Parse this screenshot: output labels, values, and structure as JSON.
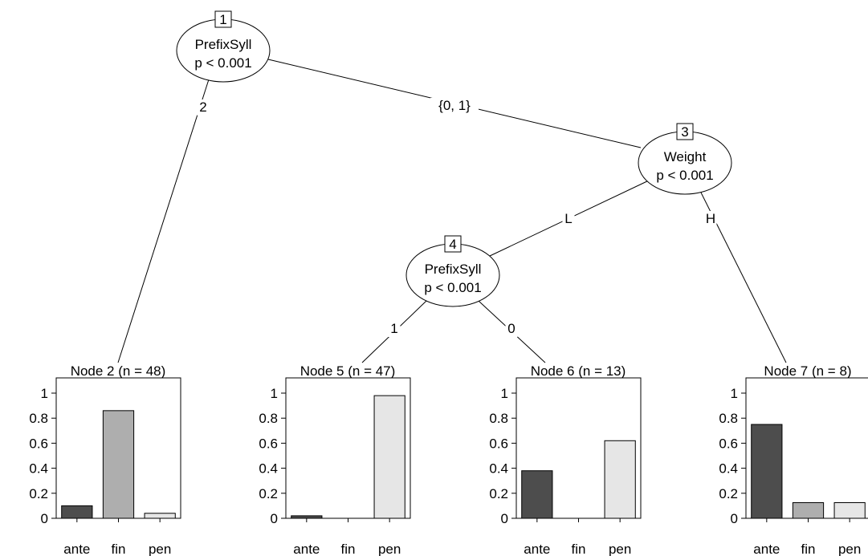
{
  "tree": {
    "inner_nodes": [
      {
        "id": "1",
        "variable": "PrefixSyll",
        "p": "p < 0.001"
      },
      {
        "id": "3",
        "variable": "Weight",
        "p": "p < 0.001"
      },
      {
        "id": "4",
        "variable": "PrefixSyll",
        "p": "p < 0.001"
      }
    ],
    "edges": [
      {
        "from": "1",
        "to": "2",
        "label": "2"
      },
      {
        "from": "1",
        "to": "3",
        "label": "{0, 1}"
      },
      {
        "from": "3",
        "to": "4",
        "label": "L"
      },
      {
        "from": "3",
        "to": "7",
        "label": "H"
      },
      {
        "from": "4",
        "to": "5",
        "label": "1"
      },
      {
        "from": "4",
        "to": "6",
        "label": "0"
      }
    ]
  },
  "y_ticks": [
    "0",
    "0.2",
    "0.4",
    "0.6",
    "0.8",
    "1"
  ],
  "chart_data": [
    {
      "type": "bar",
      "title": "Node 2 (n = 48)",
      "categories": [
        "ante",
        "fin",
        "pen"
      ],
      "values": [
        0.1,
        0.86,
        0.04
      ],
      "ylim": [
        0,
        1
      ]
    },
    {
      "type": "bar",
      "title": "Node 5 (n = 47)",
      "categories": [
        "ante",
        "fin",
        "pen"
      ],
      "values": [
        0.02,
        0.0,
        0.98
      ],
      "ylim": [
        0,
        1
      ]
    },
    {
      "type": "bar",
      "title": "Node 6 (n = 13)",
      "categories": [
        "ante",
        "fin",
        "pen"
      ],
      "values": [
        0.38,
        0.0,
        0.62
      ],
      "ylim": [
        0,
        1
      ]
    },
    {
      "type": "bar",
      "title": "Node 7 (n = 8)",
      "categories": [
        "ante",
        "fin",
        "pen"
      ],
      "values": [
        0.75,
        0.125,
        0.125
      ],
      "ylim": [
        0,
        1
      ]
    }
  ],
  "colors": {
    "ante": "#4d4d4d",
    "fin": "#aeaeae",
    "pen": "#e6e6e6",
    "line": "#000000"
  }
}
